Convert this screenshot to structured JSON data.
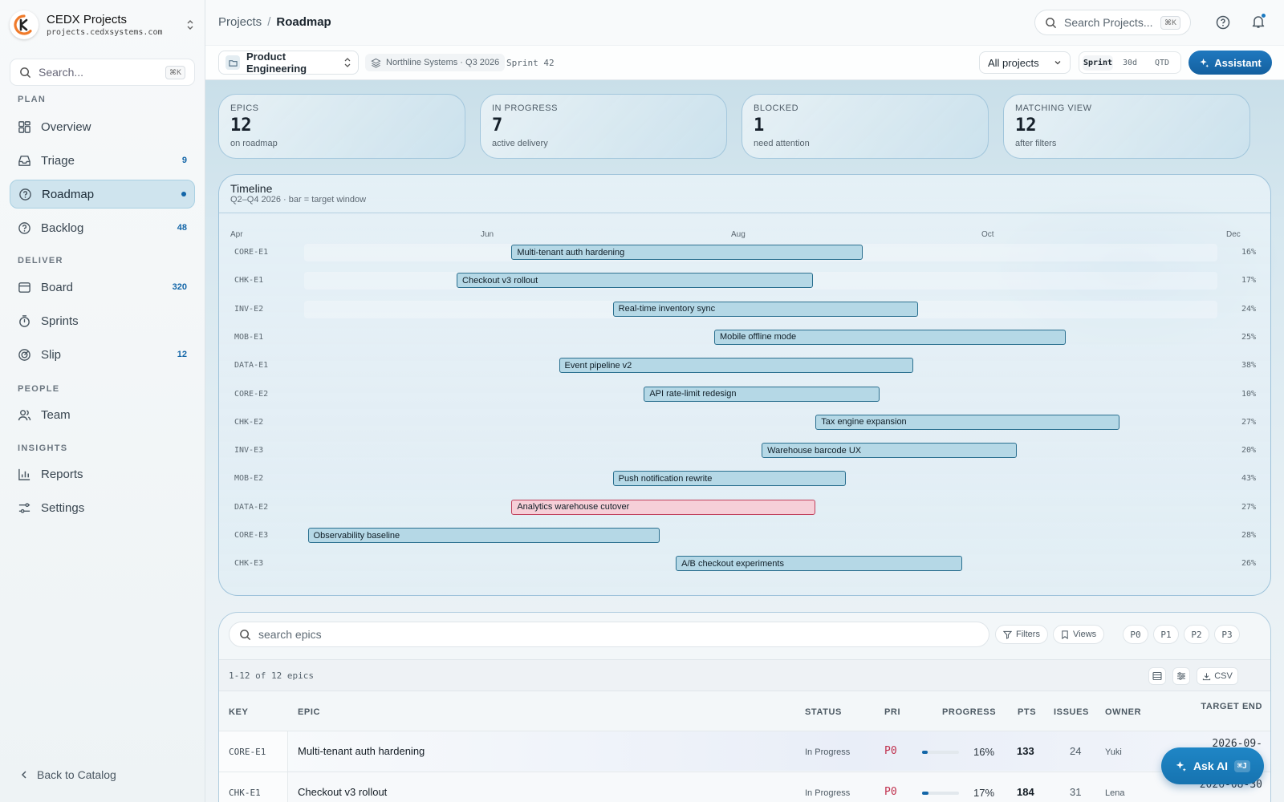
{
  "brand": {
    "name": "CEDX Projects",
    "url": "projects.cedxsystems.com"
  },
  "sidebar": {
    "search_placeholder": "Search...",
    "search_kbd": "⌘K",
    "sections": {
      "plan": "PLAN",
      "deliver": "DELIVER",
      "people": "PEOPLE",
      "insights": "INSIGHTS"
    },
    "items": {
      "overview": {
        "label": "Overview"
      },
      "triage": {
        "label": "Triage",
        "count": "9"
      },
      "roadmap": {
        "label": "Roadmap"
      },
      "backlog": {
        "label": "Backlog",
        "count": "48"
      },
      "board": {
        "label": "Board",
        "count": "320"
      },
      "sprints": {
        "label": "Sprints"
      },
      "slip": {
        "label": "Slip",
        "count": "12"
      },
      "team": {
        "label": "Team"
      },
      "reports": {
        "label": "Reports"
      },
      "settings": {
        "label": "Settings"
      }
    },
    "back_label": "Back to Catalog"
  },
  "header": {
    "breadcrumb": {
      "root": "Projects",
      "sep": "/",
      "current": "Roadmap"
    },
    "search_placeholder": "Search Projects...",
    "search_kbd": "⌘K"
  },
  "subbar": {
    "workspace": "Product Engineering",
    "org_chip": "Northline Systems · Q3 2026",
    "sprint_chip": "Sprint 42",
    "project_select": "All projects",
    "ranges": [
      "Sprint",
      "30d",
      "QTD"
    ],
    "active_range": "Sprint",
    "assistant_label": "Assistant"
  },
  "stats": [
    {
      "label": "EPICS",
      "value": "12",
      "sub": "on roadmap"
    },
    {
      "label": "IN PROGRESS",
      "value": "7",
      "sub": "active delivery"
    },
    {
      "label": "BLOCKED",
      "value": "1",
      "sub": "need attention"
    },
    {
      "label": "MATCHING VIEW",
      "value": "12",
      "sub": "after filters"
    }
  ],
  "timeline": {
    "title": "Timeline",
    "subtitle": "Q2–Q4 2026 · bar = target window",
    "months": [
      "Apr",
      "Jun",
      "Aug",
      "Oct",
      "Dec"
    ],
    "rows": [
      {
        "key": "CORE-E1",
        "name": "Multi-tenant auth hardening",
        "start": 0.227,
        "end": 0.612,
        "pct": "16%"
      },
      {
        "key": "CHK-E1",
        "name": "Checkout v3 rollout",
        "start": 0.167,
        "end": 0.557,
        "pct": "17%"
      },
      {
        "key": "INV-E2",
        "name": "Real-time inventory sync",
        "start": 0.338,
        "end": 0.672,
        "pct": "24%"
      },
      {
        "key": "MOB-E1",
        "name": "Mobile offline mode",
        "start": 0.449,
        "end": 0.834,
        "pct": "25%"
      },
      {
        "key": "DATA-E1",
        "name": "Event pipeline v2",
        "start": 0.279,
        "end": 0.667,
        "pct": "38%"
      },
      {
        "key": "CORE-E2",
        "name": "API rate-limit redesign",
        "start": 0.372,
        "end": 0.63,
        "pct": "10%"
      },
      {
        "key": "CHK-E2",
        "name": "Tax engine expansion",
        "start": 0.56,
        "end": 0.893,
        "pct": "27%"
      },
      {
        "key": "INV-E3",
        "name": "Warehouse barcode UX",
        "start": 0.501,
        "end": 0.78,
        "pct": "20%"
      },
      {
        "key": "MOB-E2",
        "name": "Push notification rewrite",
        "start": 0.338,
        "end": 0.593,
        "pct": "43%"
      },
      {
        "key": "DATA-E2",
        "name": "Analytics warehouse cutover",
        "start": 0.227,
        "end": 0.56,
        "pct": "27%",
        "risk": true
      },
      {
        "key": "CORE-E3",
        "name": "Observability baseline",
        "start": 0.004,
        "end": 0.389,
        "pct": "28%"
      },
      {
        "key": "CHK-E3",
        "name": "A/B checkout experiments",
        "start": 0.407,
        "end": 0.721,
        "pct": "26%"
      }
    ]
  },
  "table": {
    "search_placeholder": "search epics",
    "filters_label": "Filters",
    "views_label": "Views",
    "priorities": [
      "P0",
      "P1",
      "P2",
      "P3"
    ],
    "count_text": "1-12 of 12 epics",
    "csv_label": "CSV",
    "headers": {
      "key": "KEY",
      "epic": "EPIC",
      "status": "STATUS",
      "pri": "PRI",
      "progress": "PROGRESS",
      "pts": "PTS",
      "issues": "ISSUES",
      "owner": "OWNER",
      "target_end": "TARGET END"
    },
    "rows": [
      {
        "key": "CORE-E1",
        "epic": "Multi-tenant auth hardening",
        "status": "In Progress",
        "pri": "P0",
        "progress": 0.16,
        "progress_text": "16%",
        "pts": "133",
        "issues": "24",
        "owner": "Yuki",
        "target_end": "2026-09-"
      },
      {
        "key": "CHK-E1",
        "epic": "Checkout v3 rollout",
        "status": "In Progress",
        "pri": "P0",
        "progress": 0.17,
        "progress_text": "17%",
        "pts": "184",
        "issues": "31",
        "owner": "Lena",
        "target_end": "2026-08-30"
      }
    ]
  },
  "ask_ai": {
    "label": "Ask AI",
    "kbd": "⌘J"
  },
  "colors": {
    "accent": "#1366a8",
    "bar": "#b5d8e6",
    "risk_bar": "#f6cfd8",
    "priority": "#c0304d"
  }
}
